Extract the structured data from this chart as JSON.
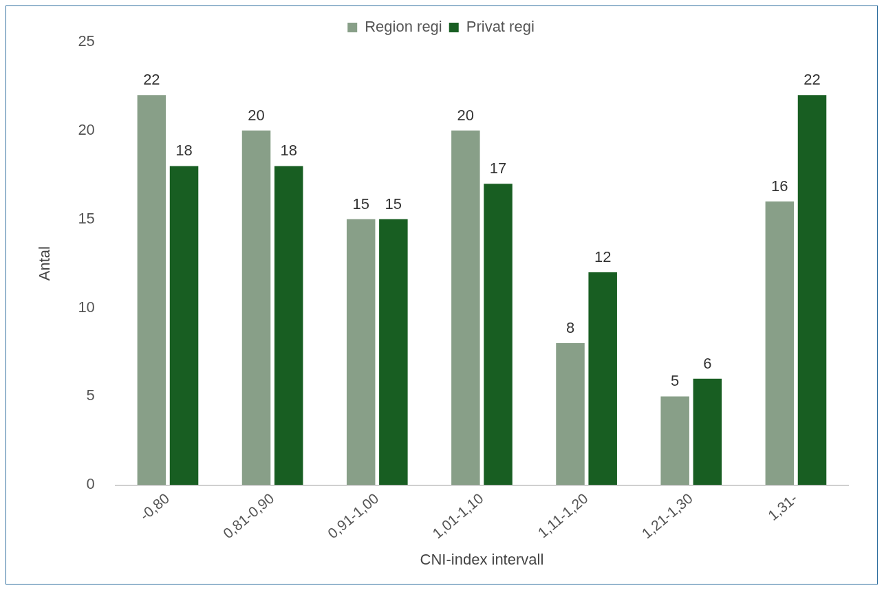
{
  "chart_data": {
    "type": "bar",
    "xlabel": "CNI-index intervall",
    "ylabel": "Antal",
    "categories": [
      "-0,80",
      "0,81-0,90",
      "0,91-1,00",
      "1,01-1,10",
      "1,11-1,20",
      "1,21-1,30",
      "1,31-"
    ],
    "series": [
      {
        "name": "Region regi",
        "color": "#889f88",
        "values": [
          22,
          20,
          15,
          20,
          8,
          5,
          16
        ]
      },
      {
        "name": "Privat regi",
        "color": "#185e22",
        "values": [
          18,
          18,
          15,
          17,
          12,
          6,
          22
        ]
      }
    ],
    "ylim": [
      0,
      25
    ],
    "yticks": [
      0,
      5,
      10,
      15,
      20,
      25
    ],
    "grid": false,
    "legend": "top",
    "data_labels": true
  }
}
